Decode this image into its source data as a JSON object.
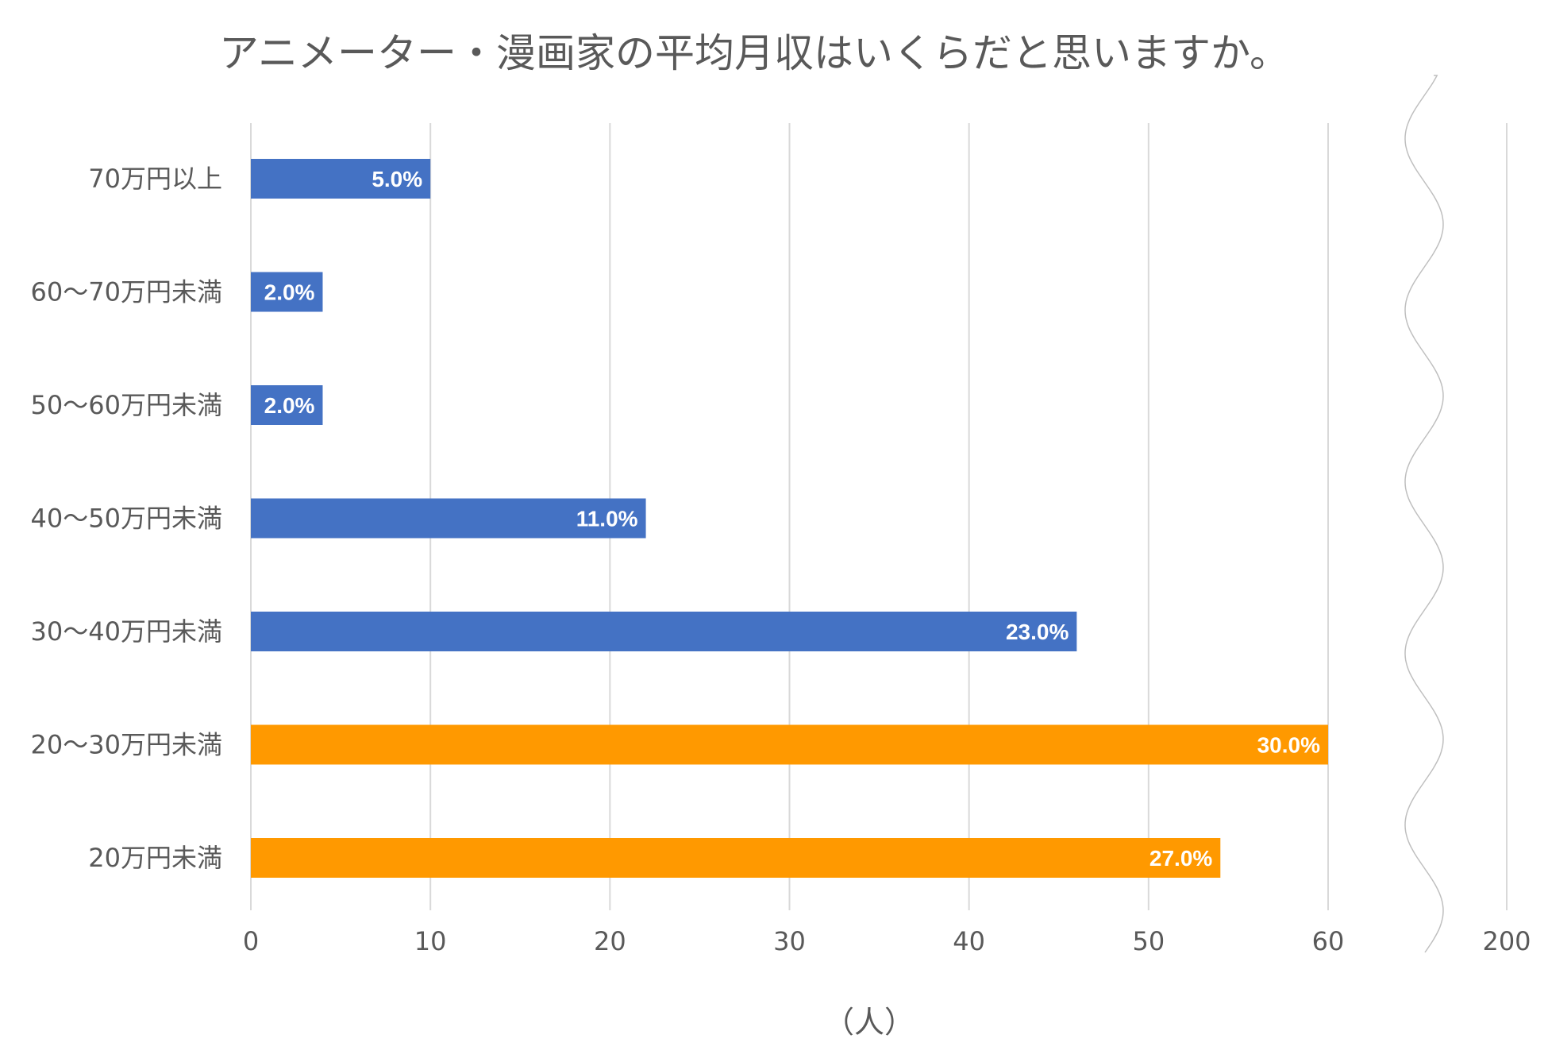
{
  "chart_data": {
    "type": "bar",
    "orientation": "horizontal",
    "title": "アニメーター・漫画家の平均月収はいくらだと思いますか。",
    "xlabel": "（人）",
    "ylabel": "",
    "categories": [
      "70万円以上",
      "60〜70万円未満",
      "50〜60万円未満",
      "40〜50万円未満",
      "30〜40万円未満",
      "20〜30万円未満",
      "20万円未満"
    ],
    "values": [
      10,
      4,
      4,
      22,
      46,
      60,
      54
    ],
    "data_labels": [
      "5.0%",
      "2.0%",
      "2.0%",
      "11.0%",
      "23.0%",
      "30.0%",
      "27.0%"
    ],
    "bar_colors": [
      "#4472c4",
      "#4472c4",
      "#4472c4",
      "#4472c4",
      "#4472c4",
      "#ff9900",
      "#ff9900"
    ],
    "x_ticks": [
      "0",
      "10",
      "20",
      "30",
      "40",
      "50",
      "60",
      "200"
    ],
    "x_tick_values": [
      0,
      10,
      20,
      30,
      40,
      50,
      60
    ],
    "axis_break": {
      "after": 60,
      "resume_at": 200
    },
    "xlim": [
      0,
      60
    ],
    "grid": true,
    "legend": "none"
  }
}
